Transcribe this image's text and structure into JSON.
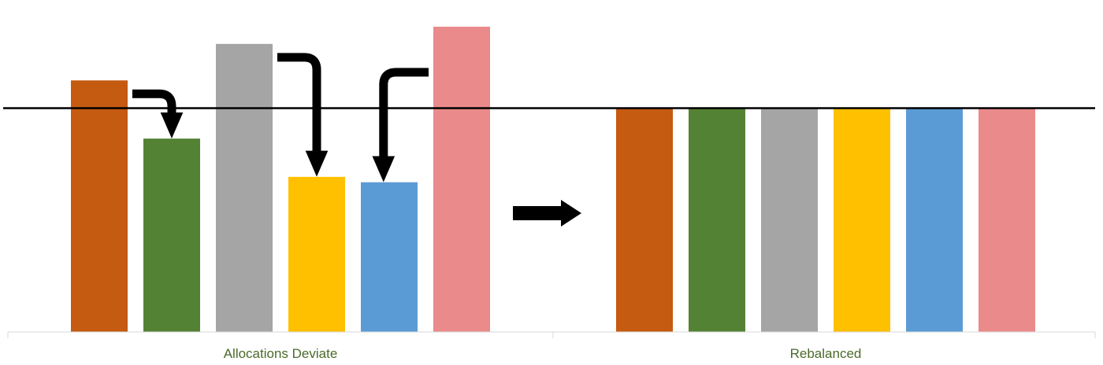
{
  "chart_data": {
    "type": "bar",
    "categories": [
      "Allocations Deviate",
      "Rebalanced"
    ],
    "series_colors": [
      "#C55A11",
      "#548235",
      "#A5A5A5",
      "#FFC000",
      "#5B9BD5",
      "#EA8A8A"
    ],
    "groups": [
      {
        "category": "Allocations Deviate",
        "values": [
          1.124,
          0.864,
          1.287,
          0.693,
          0.669,
          1.364
        ]
      },
      {
        "category": "Rebalanced",
        "values": [
          1.0,
          1.0,
          1.0,
          1.0,
          1.0,
          1.0
        ]
      }
    ],
    "target_line": 1.0,
    "ylim": [
      0,
      1.42
    ],
    "transfers": [
      {
        "from_bar": 0,
        "to_bar": 1,
        "shape": "right-then-down"
      },
      {
        "from_bar": 2,
        "to_bar": 3,
        "shape": "right-then-down"
      },
      {
        "from_bar": 5,
        "to_bar": 4,
        "shape": "left-then-down"
      }
    ],
    "transition_arrow": "right",
    "title": "",
    "xlabel": "",
    "ylabel": "",
    "grid": false,
    "legend": "none"
  }
}
